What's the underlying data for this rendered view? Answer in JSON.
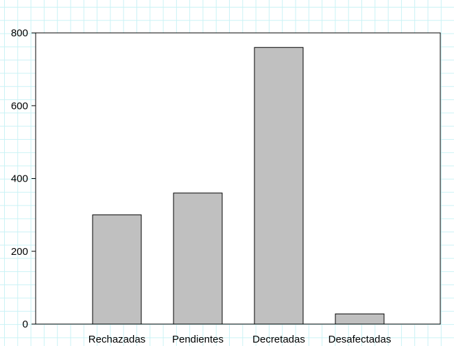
{
  "chart_data": {
    "type": "bar",
    "title": "",
    "xlabel": "",
    "ylabel": "",
    "categories": [
      "Rechazadas",
      "Pendientes",
      "Decretadas",
      "Desafectadas"
    ],
    "values": [
      300,
      360,
      760,
      28
    ],
    "ylim": [
      0,
      800
    ],
    "yticks": [
      "0",
      "200",
      "400",
      "600",
      "800"
    ],
    "grid": false,
    "legend": "none",
    "bar_color": "#c0c0c0",
    "bar_edge_color": "#000000",
    "background_grid_color": "#c9f2f5"
  }
}
